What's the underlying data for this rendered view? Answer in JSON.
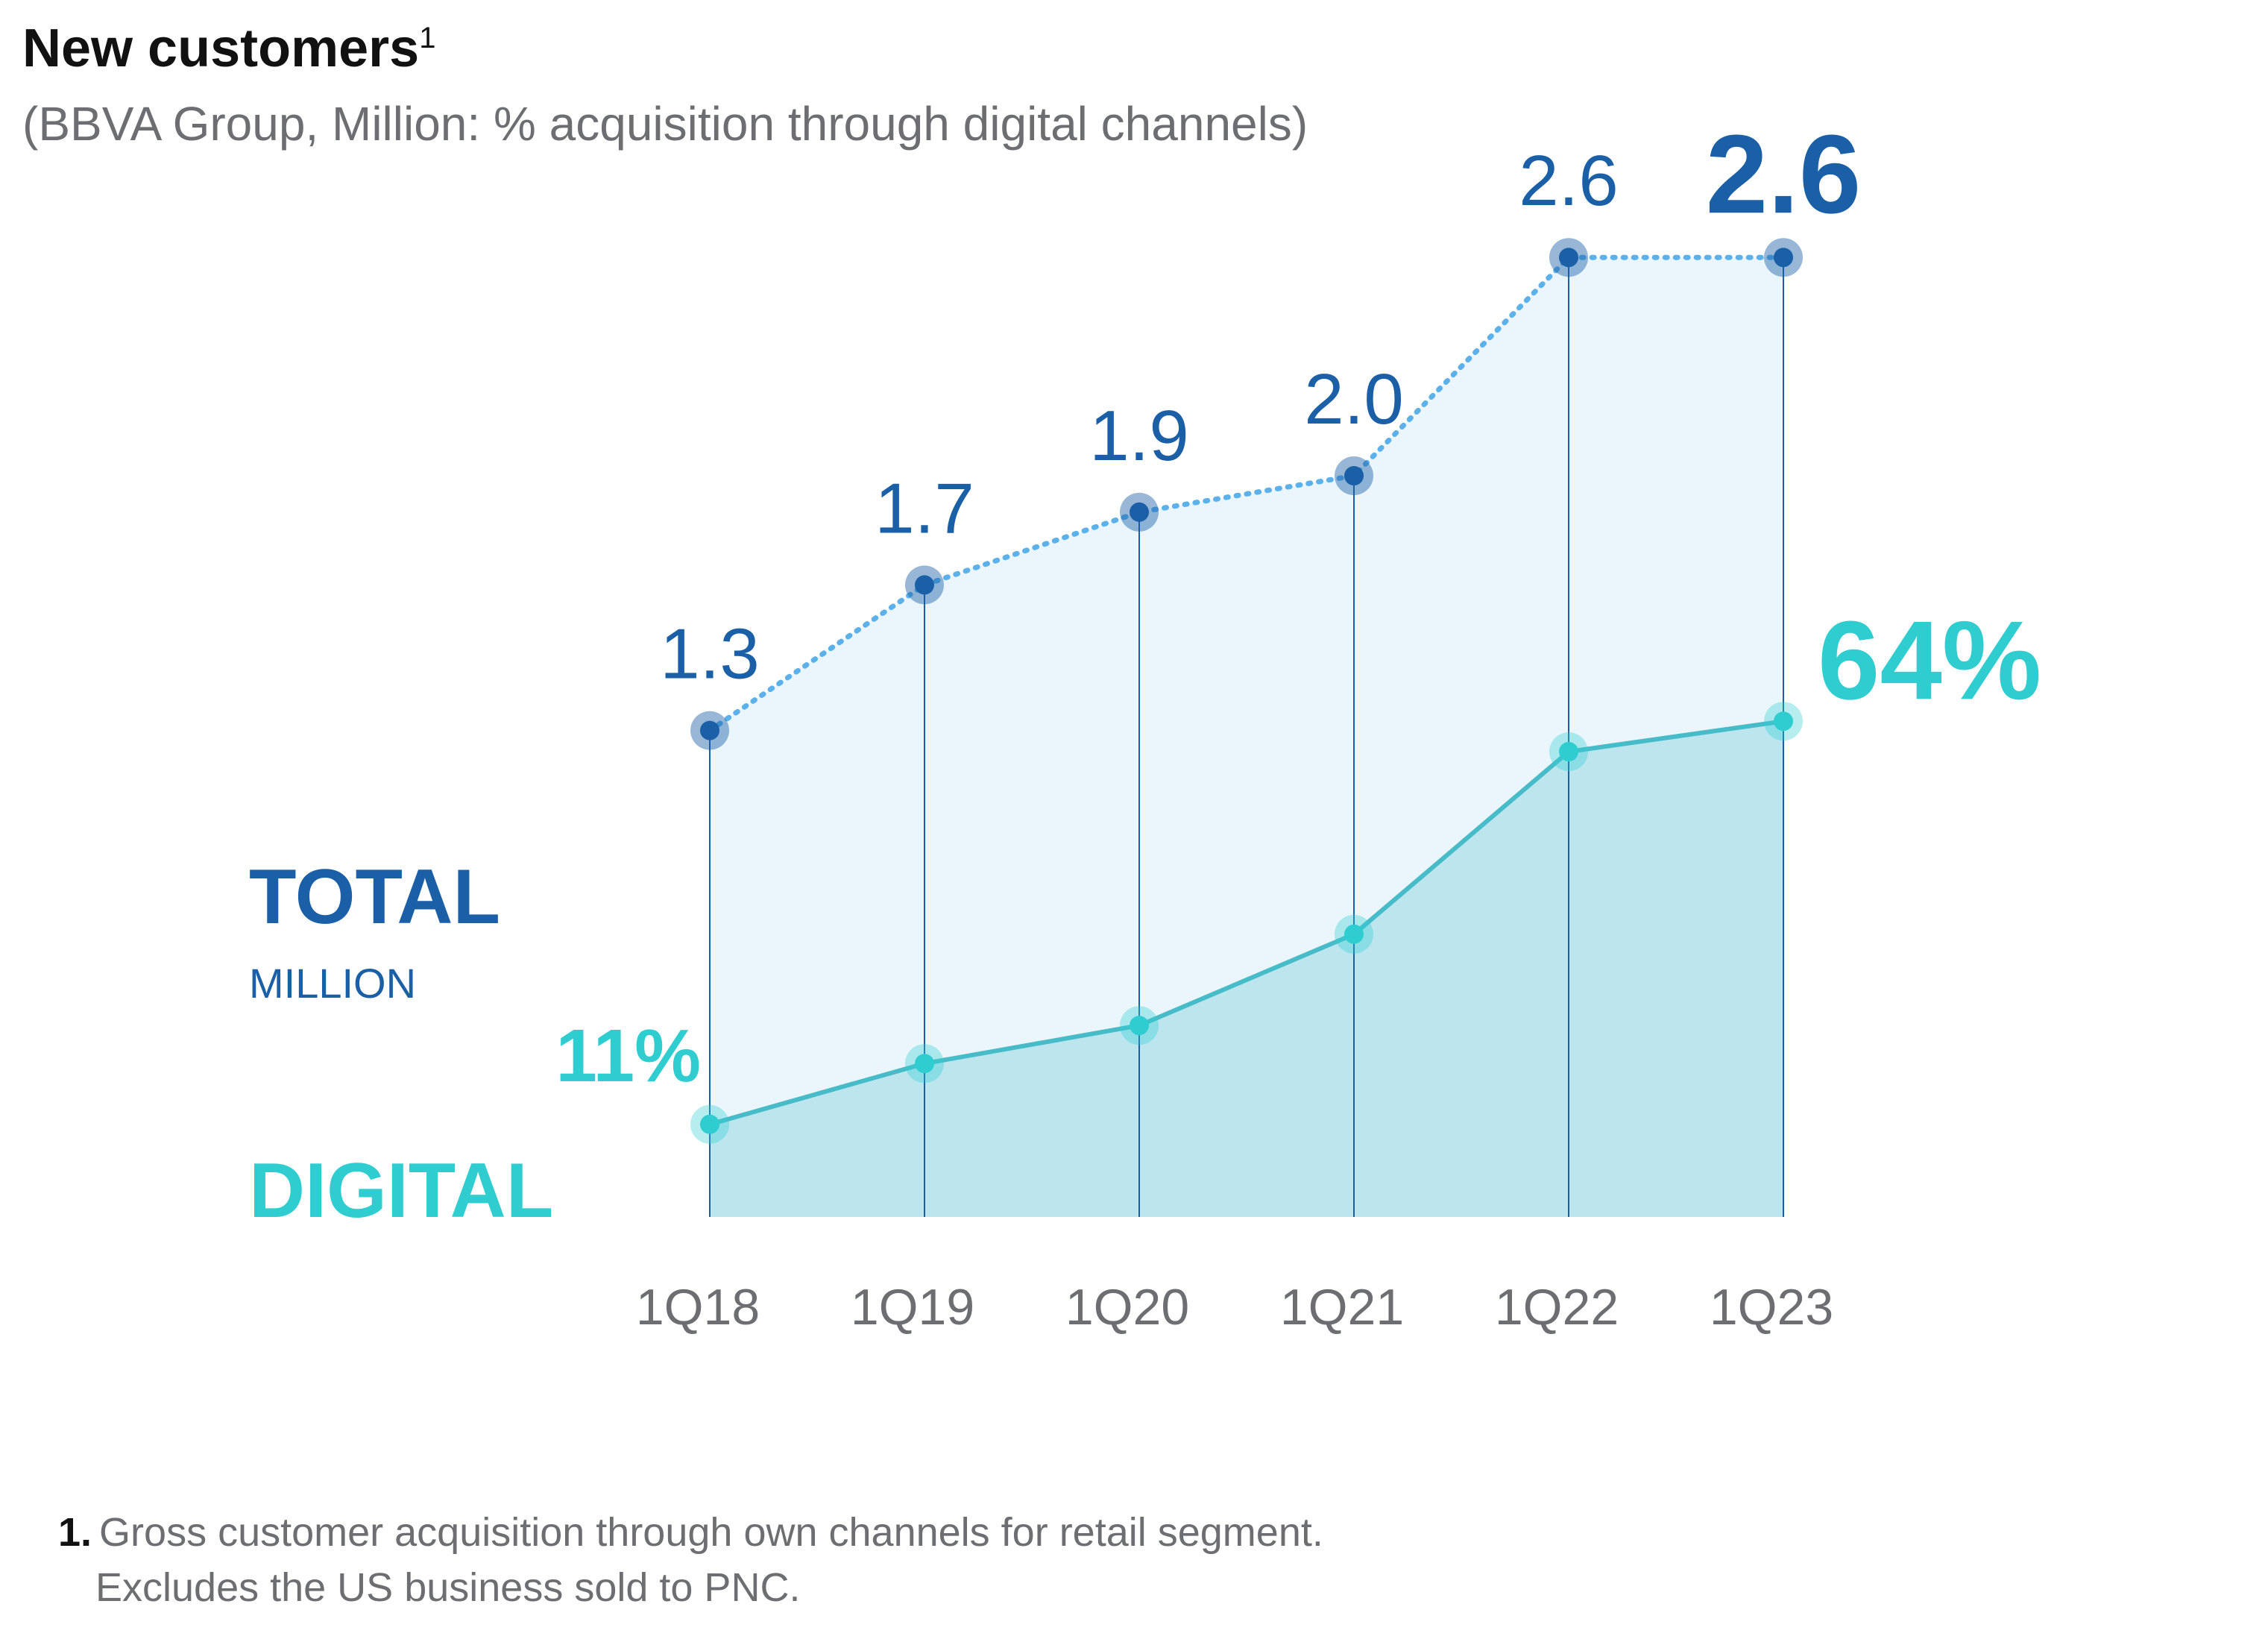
{
  "title": "New customers",
  "title_footnote_mark": "1",
  "subtitle": "(BBVA Group, Million: % acquisition through digital channels)",
  "colors": {
    "total": "#1b5fa6",
    "total_line": "#5cb1ea",
    "total_fill": "#eaf6fc",
    "digital": "#2fcdd0",
    "digital_line": "#47bcc8",
    "digital_fill": "#bce5ee",
    "axis_text": "#6d6e71"
  },
  "chart_data": {
    "type": "area",
    "categories": [
      "1Q18",
      "1Q19",
      "1Q20",
      "1Q21",
      "1Q22",
      "1Q23"
    ],
    "series": [
      {
        "name": "TOTAL",
        "unit": "MILLION",
        "values": [
          1.3,
          1.7,
          1.9,
          2.0,
          2.6,
          2.6
        ],
        "value_labels": [
          "1.3",
          "1.7",
          "1.9",
          "2.0",
          "2.6",
          "2.6"
        ]
      },
      {
        "name": "DIGITAL",
        "values": [
          11,
          19,
          24,
          36,
          60,
          64
        ],
        "value_labels": [
          "11%",
          "",
          "",
          "",
          "",
          "64%"
        ]
      }
    ]
  },
  "footnote": {
    "number": "1.",
    "line1": "Gross customer acquisition through own channels for retail segment.",
    "line2": "Excludes the US business sold to PNC."
  }
}
